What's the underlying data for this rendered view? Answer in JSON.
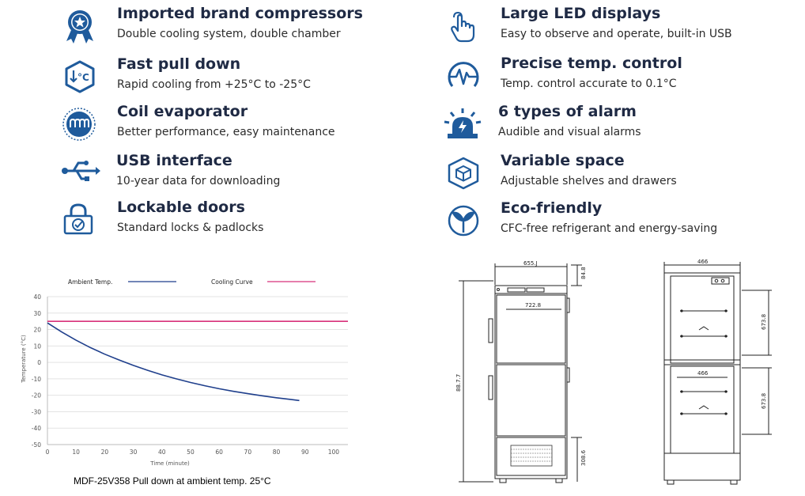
{
  "features": [
    {
      "icon": "award-badge-icon",
      "title": "Imported brand compressors",
      "desc": "Double cooling system, double chamber"
    },
    {
      "icon": "temperature-down-icon",
      "title": "Fast pull down",
      "desc": "Rapid cooling from +25°C to -25°C"
    },
    {
      "icon": "coil-icon",
      "title": "Coil evaporator",
      "desc": "Better performance, easy maintenance"
    },
    {
      "icon": "usb-icon",
      "title": "USB interface",
      "desc": "10-year data for downloading"
    },
    {
      "icon": "padlock-icon",
      "title": "Lockable doors",
      "desc": "Standard locks & padlocks"
    },
    {
      "icon": "touch-hand-icon",
      "title": "Large LED displays",
      "desc": "Easy to observe and operate, built-in USB"
    },
    {
      "icon": "pulse-gauge-icon",
      "title": "Precise temp. control",
      "desc": "Temp. control  accurate to 0.1°C"
    },
    {
      "icon": "alarm-light-icon",
      "title": "6 types of alarm",
      "desc": "Audible and visual alarms"
    },
    {
      "icon": "cube-icon",
      "title": "Variable space",
      "desc": "Adjustable shelves and drawers"
    },
    {
      "icon": "leaf-icon",
      "title": "Eco-friendly",
      "desc": "CFC-free refrigerant and energy-saving"
    }
  ],
  "chart_data": {
    "type": "line",
    "xlabel": "Time (minute)",
    "ylabel": "Temperature (°C)",
    "xlim": [
      0,
      105
    ],
    "ylim": [
      -50,
      40
    ],
    "xticks": [
      0,
      10,
      20,
      30,
      40,
      50,
      60,
      70,
      80,
      90,
      100
    ],
    "yticks": [
      40,
      30,
      20,
      10,
      0,
      -10,
      -20,
      -30,
      -40,
      -50
    ],
    "grid": true,
    "legend": "top",
    "series": [
      {
        "name": "Ambient Temp.",
        "color": "#1f3f8c",
        "x": [
          0,
          5,
          10,
          15,
          20,
          25,
          30,
          35,
          40,
          45,
          50,
          55,
          60,
          65,
          70,
          75,
          80,
          85,
          88
        ],
        "y": [
          24,
          18.5,
          13.5,
          9,
          5,
          1.5,
          -1.8,
          -4.8,
          -7.6,
          -10,
          -12.2,
          -14.2,
          -16,
          -17.6,
          -19,
          -20.3,
          -21.5,
          -22.5,
          -23.2
        ]
      },
      {
        "name": "Cooling Curve",
        "color": "#d8317a",
        "x": [
          0,
          105
        ],
        "y": [
          25,
          25
        ]
      }
    ],
    "caption": "MDF-25V358 Pull down at ambient temp. 25°C"
  },
  "drawings": {
    "front": {
      "width_top": "655.J",
      "inner_width": "722.8",
      "top_h": "84.8",
      "height": "88.7.7",
      "base": "308.6"
    },
    "side": {
      "width_top": "466",
      "inner_width": "466",
      "upper_h": "673.8",
      "lower_h": "673.8"
    }
  }
}
